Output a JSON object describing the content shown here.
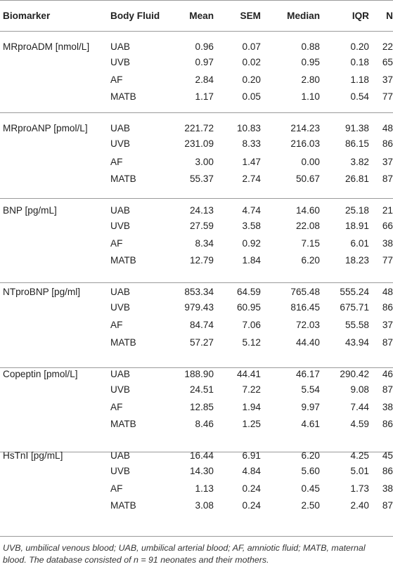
{
  "headers": [
    "Biomarker",
    "Body Fluid",
    "Mean",
    "SEM",
    "Median",
    "IQR",
    "N"
  ],
  "groups": [
    {
      "biomarker": "MRproADM [nmol/L]",
      "rows": [
        {
          "fluid": "UAB",
          "mean": "0.96",
          "sem": "0.07",
          "median": "0.88",
          "iqr": "0.20",
          "n": "22"
        },
        {
          "fluid": "UVB",
          "mean": "0.97",
          "sem": "0.02",
          "median": "0.95",
          "iqr": "0.18",
          "n": "65"
        },
        {
          "fluid": "AF",
          "mean": "2.84",
          "sem": "0.20",
          "median": "2.80",
          "iqr": "1.18",
          "n": "37"
        },
        {
          "fluid": "MATB",
          "mean": "1.17",
          "sem": "0.05",
          "median": "1.10",
          "iqr": "0.54",
          "n": "77"
        }
      ]
    },
    {
      "biomarker": "MRproANP [pmol/L]",
      "rows": [
        {
          "fluid": "UAB",
          "mean": "221.72",
          "sem": "10.83",
          "median": "214.23",
          "iqr": "91.38",
          "n": "48"
        },
        {
          "fluid": "UVB",
          "mean": "231.09",
          "sem": "8.33",
          "median": "216.03",
          "iqr": "86.15",
          "n": "86"
        },
        {
          "fluid": "AF",
          "mean": "3.00",
          "sem": "1.47",
          "median": "0.00",
          "iqr": "3.82",
          "n": "37"
        },
        {
          "fluid": "MATB",
          "mean": "55.37",
          "sem": "2.74",
          "median": "50.67",
          "iqr": "26.81",
          "n": "87"
        }
      ]
    },
    {
      "biomarker": "BNP [pg/mL]",
      "rows": [
        {
          "fluid": "UAB",
          "mean": "24.13",
          "sem": "4.74",
          "median": "14.60",
          "iqr": "25.18",
          "n": "21"
        },
        {
          "fluid": "UVB",
          "mean": "27.59",
          "sem": "3.58",
          "median": "22.08",
          "iqr": "18.91",
          "n": "66"
        },
        {
          "fluid": "AF",
          "mean": "8.34",
          "sem": "0.92",
          "median": "7.15",
          "iqr": "6.01",
          "n": "38"
        },
        {
          "fluid": "MATB",
          "mean": "12.79",
          "sem": "1.84",
          "median": "6.20",
          "iqr": "18.23",
          "n": "77"
        }
      ]
    },
    {
      "biomarker": "NTproBNP [pg/ml]",
      "rows": [
        {
          "fluid": "UAB",
          "mean": "853.34",
          "sem": "64.59",
          "median": "765.48",
          "iqr": "555.24",
          "n": "48"
        },
        {
          "fluid": "UVB",
          "mean": "979.43",
          "sem": "60.95",
          "median": "816.45",
          "iqr": "675.71",
          "n": "86"
        },
        {
          "fluid": "AF",
          "mean": "84.74",
          "sem": "7.06",
          "median": "72.03",
          "iqr": "55.58",
          "n": "37"
        },
        {
          "fluid": "MATB",
          "mean": "57.27",
          "sem": "5.12",
          "median": "44.40",
          "iqr": "43.94",
          "n": "87"
        }
      ]
    },
    {
      "biomarker": "Copeptin [pmol/L]",
      "rows": [
        {
          "fluid": "UAB",
          "mean": "188.90",
          "sem": "44.41",
          "median": "46.17",
          "iqr": "290.42",
          "n": "46"
        },
        {
          "fluid": "UVB",
          "mean": "24.51",
          "sem": "7.22",
          "median": "5.54",
          "iqr": "9.08",
          "n": "87"
        },
        {
          "fluid": "AF",
          "mean": "12.85",
          "sem": "1.94",
          "median": "9.97",
          "iqr": "7.44",
          "n": "38"
        },
        {
          "fluid": "MATB",
          "mean": "8.46",
          "sem": "1.25",
          "median": "4.61",
          "iqr": "4.59",
          "n": "86"
        }
      ]
    },
    {
      "biomarker": "HsTnI [pg/mL]",
      "rows": [
        {
          "fluid": "UAB",
          "mean": "16.44",
          "sem": "6.91",
          "median": "6.20",
          "iqr": "4.25",
          "n": "45"
        },
        {
          "fluid": "UVB",
          "mean": "14.30",
          "sem": "4.84",
          "median": "5.60",
          "iqr": "5.01",
          "n": "86"
        },
        {
          "fluid": "AF",
          "mean": "1.13",
          "sem": "0.24",
          "median": "0.45",
          "iqr": "1.73",
          "n": "38"
        },
        {
          "fluid": "MATB",
          "mean": "3.08",
          "sem": "0.24",
          "median": "2.50",
          "iqr": "2.40",
          "n": "87"
        }
      ]
    }
  ],
  "footnote": "UVB, umbilical venous blood; UAB, umbilical arterial blood; AF, amniotic fluid; MATB, maternal blood. The database consisted of n = 91 neonates and their mothers."
}
